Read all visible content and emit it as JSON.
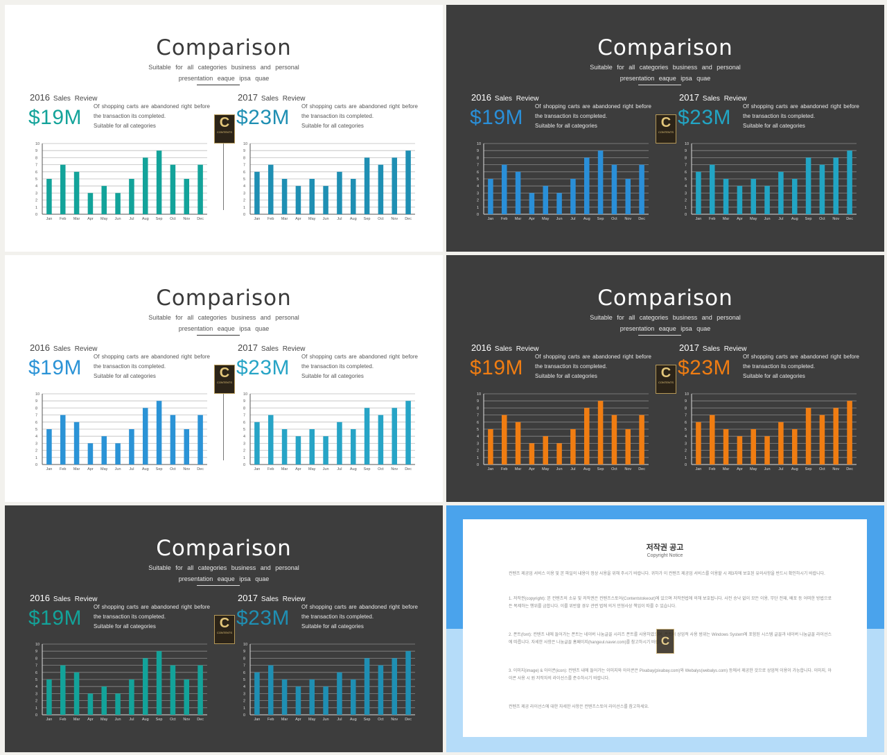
{
  "months": [
    "Jan",
    "Feb",
    "Mar",
    "Apr",
    "May",
    "Jun",
    "Jul",
    "Aug",
    "Sep",
    "Oct",
    "Nov",
    "Dec"
  ],
  "y_ticks": [
    "0",
    "1",
    "2",
    "3",
    "4",
    "5",
    "6",
    "7",
    "8",
    "9",
    "10"
  ],
  "text": {
    "title": "Comparison",
    "subtitle_1": "Suitable for all categories business and personal",
    "subtitle_2": "presentation eaque ipsa quae",
    "year_left": "2016",
    "year_right": "2017",
    "sales_label": "Sales Review",
    "amount_left": "$19M",
    "amount_right": "$23M",
    "desc_1": "Of shopping carts are abandoned right before the transaction its completed.",
    "desc_2": "Suitable for all categories"
  },
  "logo": {
    "letter": "C",
    "text": "CONTENTS"
  },
  "chart_data": [
    {
      "type": "bar",
      "title": "2016 Sales Review",
      "categories": [
        "Jan",
        "Feb",
        "Mar",
        "Apr",
        "May",
        "Jun",
        "Jul",
        "Aug",
        "Sep",
        "Oct",
        "Nov",
        "Dec"
      ],
      "values": [
        5,
        7,
        6,
        3,
        4,
        3,
        5,
        8,
        9,
        7,
        5,
        7
      ],
      "ylim": [
        0,
        10
      ],
      "grid": true
    },
    {
      "type": "bar",
      "title": "2017 Sales Review",
      "categories": [
        "Jan",
        "Feb",
        "Mar",
        "Apr",
        "May",
        "Jun",
        "Jul",
        "Aug",
        "Sep",
        "Oct",
        "Nov",
        "Dec"
      ],
      "values": [
        6,
        7,
        5,
        4,
        5,
        4,
        6,
        5,
        8,
        7,
        8,
        9
      ],
      "ylim": [
        0,
        10
      ],
      "grid": true
    }
  ],
  "slides": [
    {
      "theme": "light",
      "accent_left": "#13a39a",
      "accent_right": "#1f8fb3"
    },
    {
      "theme": "dark",
      "accent_left": "#2a8fd8",
      "accent_right": "#22a5c4"
    },
    {
      "theme": "light",
      "accent_left": "#2b93d6",
      "accent_right": "#27a4c6"
    },
    {
      "theme": "dark",
      "accent_left": "#f07d12",
      "accent_right": "#f07d12"
    },
    {
      "theme": "dark",
      "accent_left": "#13a39a",
      "accent_right": "#1f8fb3"
    }
  ],
  "copyright": {
    "title": "저작권 공고",
    "subtitle": "Copyright Notice",
    "paragraphs": [
      "컨텐츠 제공업 서비스 이용 및 본 파일의 내용이 정상 사용을 위해 주시기 바랍니다. 귀하가 이 컨텐츠 제공업 서비스를 이용할 시 제3자에 보호된 유의사항을 반드시 확인하시기 바랍니다.",
      "1. 저작권(copyright): 본 컨텐츠의 소유 및 저작권은 컨텐츠스토어(Contentstokeout)에 있으며 저작권법에 의해 보호됩니다. 사전 승낙 없이 모든 이용, 무단 전재, 배포 등 어떠한 방법으로든 복제하는 행위를 금합니다. 이를 위반할 경우 관련 법에 의거 민형사상 책임이 따를 수 있습니다.",
      "2. 폰트(font): 컨텐츠 내에 들어가는 폰트는 네이버 나눔글꼴 시리즈 폰트를 사용하였으며, 폰트의 상업적 사용 범위는 Windows System에 포함된 시스템 글꼴과 네이버 나눔글꼴 라이선스에 따릅니다. 자세한 사항은 나눔글꼴 홈페이지(hangeul.naver.com)를 참고하시기 바랍니다.",
      "3. 이미지(image) & 아이콘(icon): 컨텐츠 내에 들어가는 이미지와 아이콘은 Pixabay(pixabay.com)와 Webalys(webalys.com) 등에서 제공한 것으로 상업적 이용이 가능합니다. 이미지, 아이콘 사용 시 원 저작자의 라이선스를 준수하시기 바랍니다.",
      "컨텐츠 제공 라이선스에 대한 자세한 사항은 컨텐츠스토어 라이선스를 참고하세요."
    ]
  }
}
